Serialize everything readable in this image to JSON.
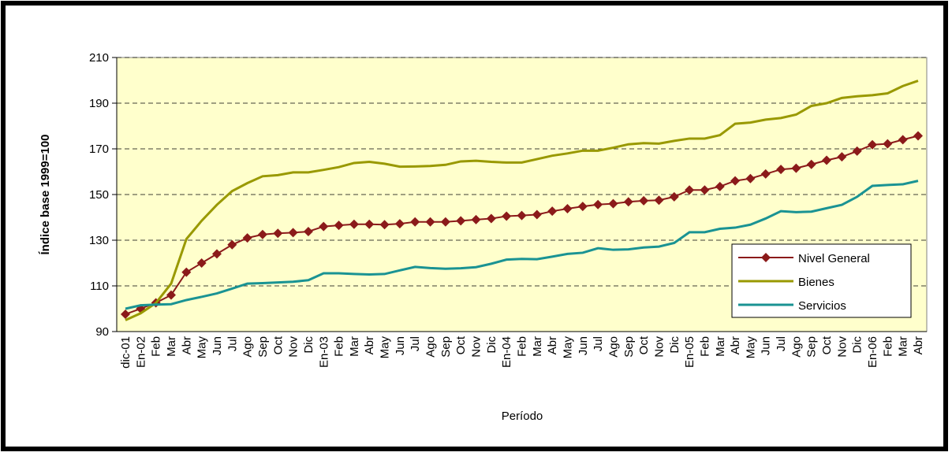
{
  "chart_data": {
    "type": "line",
    "ylabel": "Índice base 1999=100",
    "xlabel": "Período",
    "categories": [
      "dic-01",
      "En-02",
      "Feb",
      "Mar",
      "Abr",
      "May",
      "Jun",
      "Jul",
      "Ago",
      "Sep",
      "Oct",
      "Nov",
      "Dic",
      "En-03",
      "Feb",
      "Mar",
      "Abr",
      "May",
      "Jun",
      "Jul",
      "Ago",
      "Sep",
      "Oct",
      "Nov",
      "Dic",
      "En-04",
      "Feb",
      "Mar",
      "Abr",
      "May",
      "Jun",
      "Jul",
      "Ago",
      "Sep",
      "Oct",
      "Nov",
      "Dic",
      "En-05",
      "Feb",
      "Mar",
      "Abr",
      "May",
      "Jun",
      "Jul",
      "Ago",
      "Sep",
      "Oct",
      "Nov",
      "Dic",
      "En-06",
      "Feb",
      "Mar",
      "Abr"
    ],
    "series": [
      {
        "name": "Nivel General",
        "color": "#8b1a1a",
        "marker": "diamond",
        "values": [
          97.6,
          100,
          102.6,
          106,
          116,
          120,
          124,
          128,
          131,
          132.5,
          133,
          133.3,
          133.8,
          136,
          136.5,
          137,
          137,
          136.8,
          137.2,
          138,
          138,
          138,
          138.5,
          139,
          139.5,
          140.5,
          140.8,
          141.2,
          142.7,
          143.8,
          144.8,
          145.6,
          146,
          146.8,
          147.3,
          147.5,
          149,
          152,
          152,
          153.5,
          156,
          157,
          159,
          161,
          161.5,
          163.2,
          165,
          166.5,
          169,
          171.8,
          172.2,
          174,
          175.7
        ]
      },
      {
        "name": "Bienes",
        "color": "#999900",
        "values": [
          95,
          98,
          102.5,
          111,
          130.5,
          138.5,
          145.5,
          151.5,
          155,
          158,
          158.5,
          159.7,
          159.7,
          160.8,
          162,
          163.8,
          164.3,
          163.5,
          162.2,
          162.3,
          162.5,
          163,
          164.5,
          164.8,
          164.3,
          164,
          164,
          165.5,
          167,
          168,
          169.2,
          169.2,
          170.5,
          172,
          172.5,
          172.3,
          173.5,
          174.5,
          174.5,
          176,
          181,
          181.5,
          182.8,
          183.5,
          185,
          188.8,
          190,
          192.3,
          193,
          193.5,
          194.3,
          197.5,
          199.8
        ]
      },
      {
        "name": "Servicios",
        "color": "#1a9393",
        "values": [
          100,
          101.5,
          101.8,
          102,
          103.8,
          105.2,
          106.7,
          108.8,
          111,
          111.2,
          111.5,
          111.8,
          112.5,
          115.5,
          115.5,
          115.2,
          115,
          115.2,
          116.8,
          118.3,
          117.8,
          117.5,
          117.7,
          118.2,
          119.7,
          121.5,
          121.8,
          121.7,
          122.8,
          124,
          124.5,
          126.5,
          125.8,
          126,
          126.8,
          127.2,
          128.8,
          133.5,
          133.5,
          135,
          135.5,
          136.8,
          139.5,
          142.7,
          142.3,
          142.5,
          144,
          145.5,
          149,
          153.8,
          154.2,
          154.5,
          156
        ]
      }
    ],
    "ylim": [
      90,
      210
    ],
    "yticks": [
      90,
      110,
      130,
      150,
      170,
      190,
      210
    ],
    "grid": true,
    "legend": "lower right",
    "background": "#ffffcc"
  }
}
